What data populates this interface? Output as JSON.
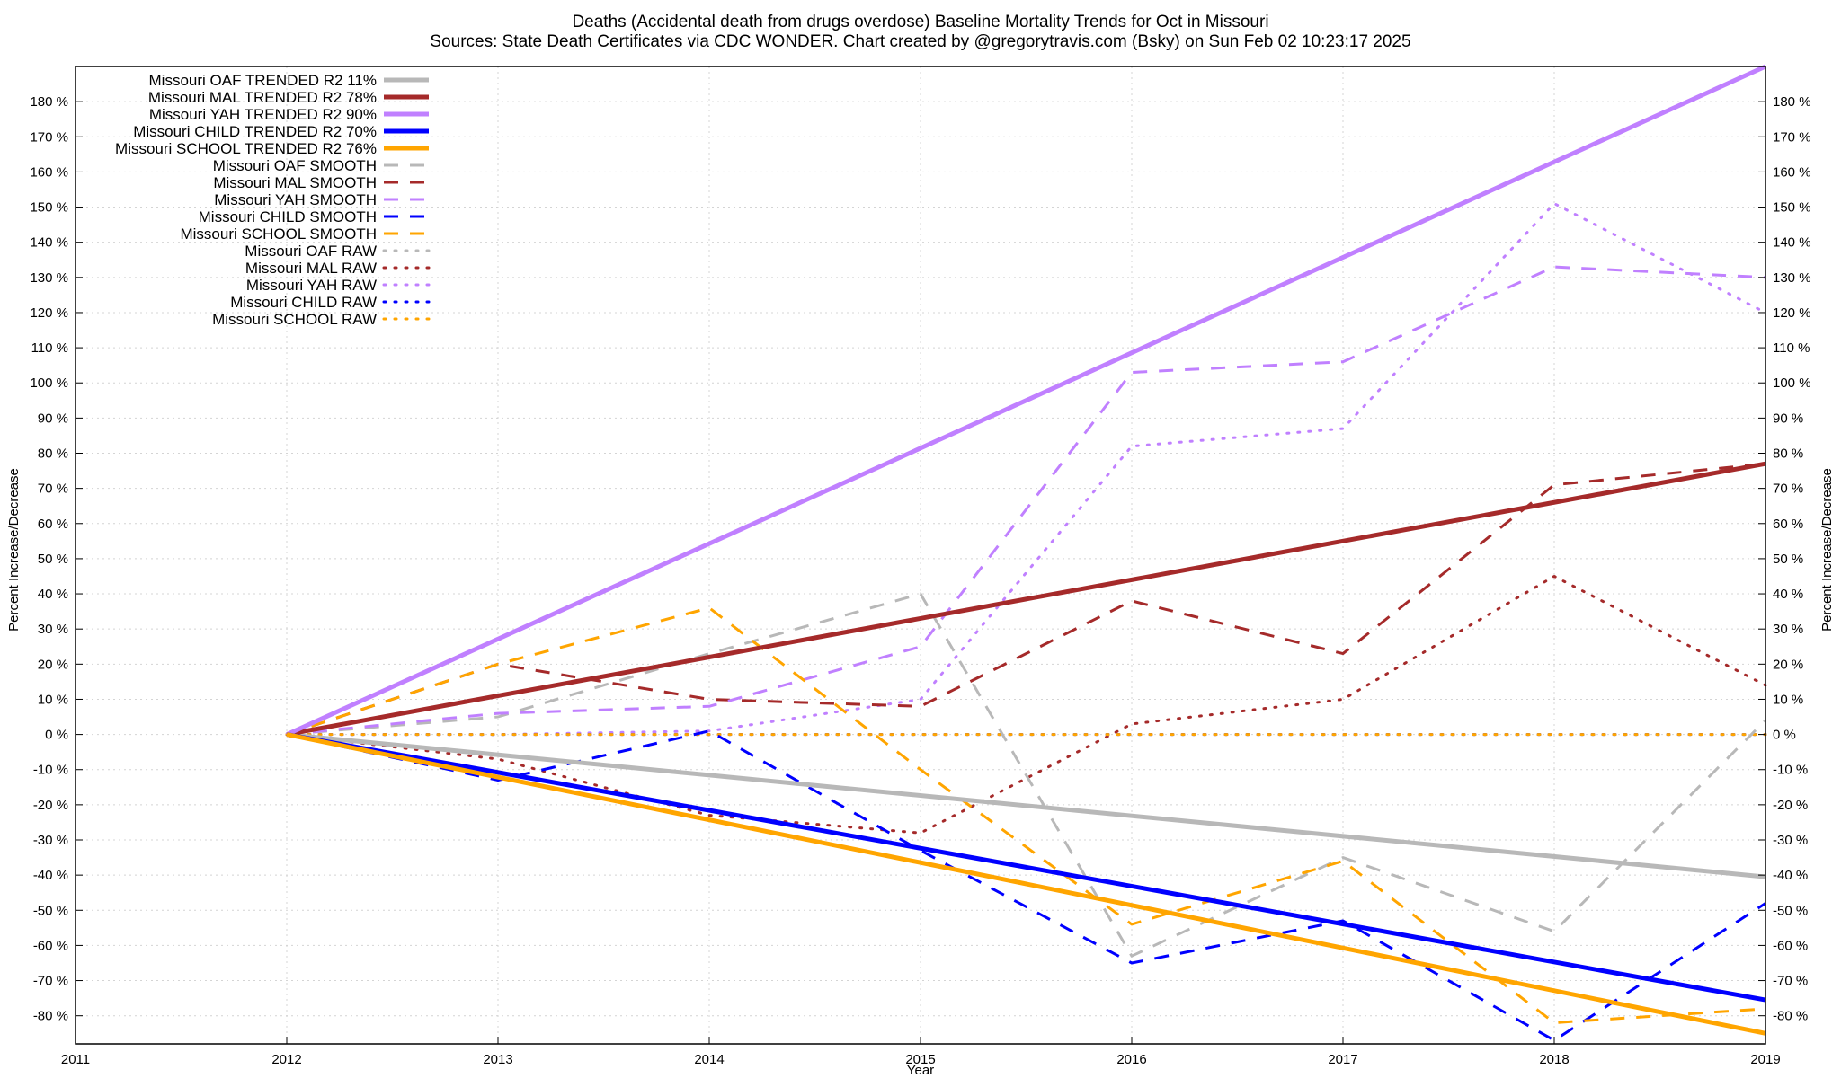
{
  "chart_data": {
    "type": "line",
    "title": "Deaths (Accidental death from drugs overdose)  Baseline Mortality Trends for Oct in Missouri",
    "subtitle": "Sources: State Death Certificates via CDC WONDER.              Chart created by @gregorytravis.com (Bsky) on Sun Feb 02 10:23:17 2025",
    "xlabel": "Year",
    "ylabel": "Percent Increase/Decrease",
    "y2label": "Percent Increase/Decrease",
    "xlim": [
      2011,
      2019
    ],
    "ylim": [
      -88,
      190
    ],
    "x_ticks": [
      "2011",
      "2012",
      "2013",
      "2014",
      "2015",
      "2016",
      "2017",
      "2018",
      "2019"
    ],
    "y_ticks": [
      "-80 %",
      "-70 %",
      "-60 %",
      "-50 %",
      "-40 %",
      "-30 %",
      "-20 %",
      "-10 %",
      "0 %",
      "10 %",
      "20 %",
      "30 %",
      "40 %",
      "50 %",
      "60 %",
      "70 %",
      "80 %",
      "90 %",
      "100 %",
      "110 %",
      "120 %",
      "130 %",
      "140 %",
      "150 %",
      "160 %",
      "170 %",
      "180 %"
    ],
    "grid": true,
    "legend_position": "top-left",
    "series": [
      {
        "name": "Missouri OAF TRENDED R2  11%",
        "style": "solid",
        "color": "#b8b8b8",
        "x": [
          2012,
          2019
        ],
        "values": [
          0,
          -40.5
        ]
      },
      {
        "name": "Missouri MAL TRENDED R2  78%",
        "style": "solid",
        "color": "#a52a2a",
        "x": [
          2012,
          2019
        ],
        "values": [
          0,
          77
        ]
      },
      {
        "name": "Missouri YAH TRENDED R2  90%",
        "style": "solid",
        "color": "#c080ff",
        "x": [
          2012,
          2019
        ],
        "values": [
          0,
          190
        ]
      },
      {
        "name": "Missouri CHILD TRENDED R2  70%",
        "style": "solid",
        "color": "#0000ff",
        "x": [
          2012,
          2019
        ],
        "values": [
          0,
          -75.5
        ]
      },
      {
        "name": "Missouri SCHOOL TRENDED R2  76%",
        "style": "solid",
        "color": "#ffa500",
        "x": [
          2012,
          2019
        ],
        "values": [
          0,
          -85
        ]
      },
      {
        "name": "Missouri OAF SMOOTH",
        "style": "dashed",
        "color": "#b8b8b8",
        "x": [
          2012,
          2013,
          2014,
          2015,
          2016,
          2017,
          2018,
          2019
        ],
        "values": [
          0,
          5,
          23,
          40,
          -63,
          -35,
          -56,
          4
        ]
      },
      {
        "name": "Missouri MAL SMOOTH",
        "style": "dashed",
        "color": "#a52a2a",
        "x": [
          2012,
          2013,
          2014,
          2015,
          2016,
          2017,
          2018,
          2019
        ],
        "values": [
          0,
          20,
          10,
          8,
          38,
          23,
          71,
          77
        ]
      },
      {
        "name": "Missouri YAH SMOOTH",
        "style": "dashed",
        "color": "#c080ff",
        "x": [
          2012,
          2013,
          2014,
          2015,
          2016,
          2017,
          2018,
          2019
        ],
        "values": [
          0,
          6,
          8,
          25,
          103,
          106,
          133,
          130
        ]
      },
      {
        "name": "Missouri CHILD SMOOTH",
        "style": "dashed",
        "color": "#0000ff",
        "x": [
          2012,
          2013,
          2014,
          2015,
          2016,
          2017,
          2018,
          2019
        ],
        "values": [
          0,
          -13,
          1,
          -33,
          -65,
          -53,
          -87,
          -48
        ]
      },
      {
        "name": "Missouri SCHOOL SMOOTH",
        "style": "dashed",
        "color": "#ffa500",
        "x": [
          2012,
          2013,
          2014,
          2015,
          2016,
          2017,
          2018,
          2019
        ],
        "values": [
          0,
          20,
          36,
          -10,
          -54,
          -36,
          -82,
          -78
        ]
      },
      {
        "name": "Missouri OAF RAW",
        "style": "dotted",
        "color": "#b8b8b8",
        "x": [
          2012,
          2013,
          2014,
          2015,
          2016,
          2017,
          2018,
          2019
        ],
        "values": [
          0,
          0,
          0,
          0,
          0,
          0,
          0,
          0
        ]
      },
      {
        "name": "Missouri MAL RAW",
        "style": "dotted",
        "color": "#a52a2a",
        "x": [
          2012,
          2013,
          2014,
          2015,
          2016,
          2017,
          2018,
          2019
        ],
        "values": [
          0,
          -7,
          -23,
          -28,
          3,
          10,
          45,
          14
        ]
      },
      {
        "name": "Missouri YAH RAW",
        "style": "dotted",
        "color": "#c080ff",
        "x": [
          2012,
          2013,
          2014,
          2015,
          2016,
          2017,
          2018,
          2019
        ],
        "values": [
          0,
          0,
          1,
          10,
          82,
          87,
          151,
          120
        ]
      },
      {
        "name": "Missouri CHILD RAW",
        "style": "dotted",
        "color": "#0000ff",
        "x": [
          2012,
          2013,
          2014,
          2015,
          2016,
          2017,
          2018,
          2019
        ],
        "values": [
          0,
          0,
          0,
          0,
          0,
          0,
          0,
          0
        ]
      },
      {
        "name": "Missouri SCHOOL RAW",
        "style": "dotted",
        "color": "#ffa500",
        "x": [
          2012,
          2013,
          2014,
          2015,
          2016,
          2017,
          2018,
          2019
        ],
        "values": [
          0,
          0,
          0,
          0,
          0,
          0,
          0,
          0
        ]
      }
    ]
  }
}
